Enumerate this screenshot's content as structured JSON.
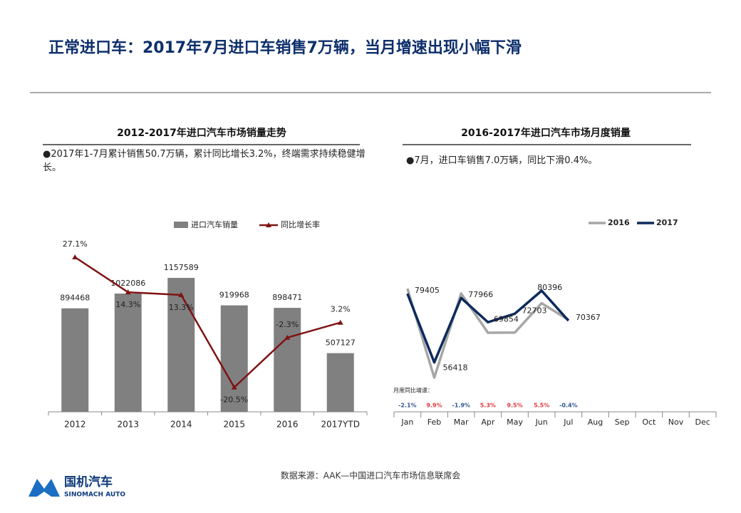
{
  "header": {
    "title": "正常进口车：2017年7月进口车销售7万辆，当月增速出现小幅下滑"
  },
  "chart_data": [
    {
      "type": "bar-line",
      "title": "2012-2017年进口汽车市场销量走势",
      "note": "●2017年1-7月累计销售50.7万辆，累计同比增长3.2%，终端需求持续稳健增长。",
      "categories": [
        "2012",
        "2013",
        "2014",
        "2015",
        "2016",
        "2017YTD"
      ],
      "series": [
        {
          "name": "进口汽车销量",
          "type": "bar",
          "color": "#808080",
          "values": [
            894468,
            1022086,
            1157589,
            919968,
            898471,
            507127
          ]
        },
        {
          "name": "同比增长率",
          "type": "line",
          "axis": "y2",
          "color": "#7f1414",
          "values": [
            27.1,
            14.3,
            13.3,
            -20.5,
            -2.3,
            3.2
          ],
          "value_labels": [
            "27.1%",
            "14.3%",
            "13.3%",
            "-20.5%",
            "-2.3%",
            "3.2%"
          ]
        }
      ]
    },
    {
      "type": "line",
      "title": "2016-2017年进口汽车市场月度销量",
      "note": "●7月，进口车销售7.0万辆，同比下滑0.4%。",
      "categories": [
        "Jan",
        "Feb",
        "Mar",
        "Apr",
        "May",
        "Jun",
        "Jul",
        "Aug",
        "Sep",
        "Oct",
        "Nov",
        "Dec"
      ],
      "series": [
        {
          "name": "2016",
          "color": "#a6a6a6",
          "values": [
            81110,
            51336,
            79467,
            66338,
            66395,
            76205,
            70650,
            null,
            null,
            null,
            null,
            null
          ]
        },
        {
          "name": "2017",
          "color": "#0d2a5c",
          "values": [
            79405,
            56418,
            77966,
            69854,
            72703,
            80396,
            70367,
            null,
            null,
            null,
            null,
            null
          ],
          "show_labels": true
        }
      ],
      "growth": {
        "label": "月度同比增速：",
        "values": [
          -2.1,
          9.9,
          -1.9,
          5.3,
          9.5,
          5.5,
          -0.4
        ],
        "value_labels": [
          "-2.1%",
          "9.9%",
          "-1.9%",
          "5.3%",
          "9.5%",
          "5.5%",
          "-0.4%"
        ],
        "positive_color": "#e03c3c",
        "negative_color": "#2f5597"
      }
    }
  ],
  "source": "数据来源：AAK—中国进口汽车市场信息联席会",
  "logo": {
    "name": "国机汽车",
    "subtitle": "SINOMACH AUTO"
  }
}
